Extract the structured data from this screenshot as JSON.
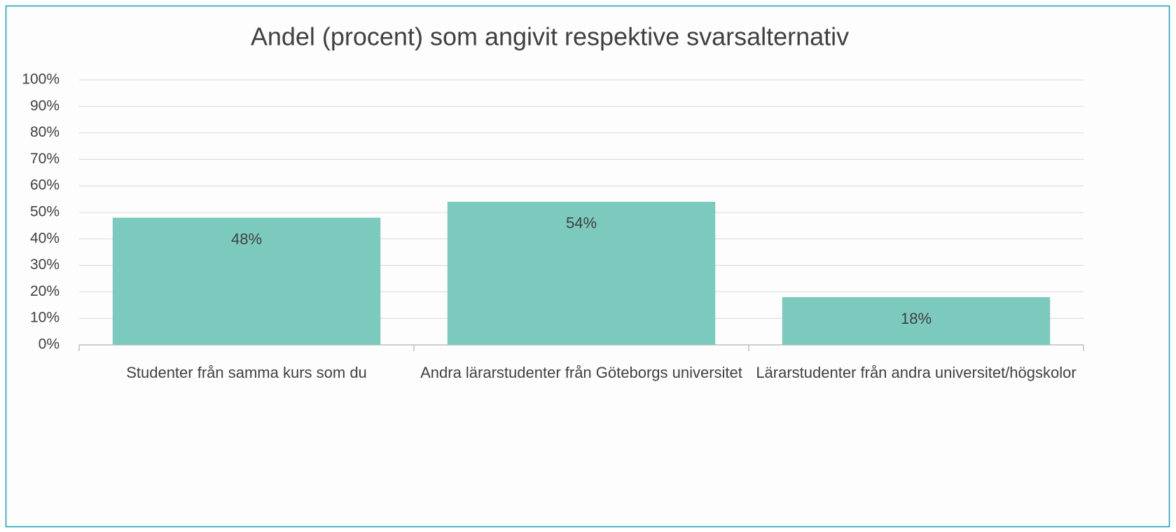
{
  "chart_data": {
    "type": "bar",
    "title": "Andel (procent) som angivit respektive svarsalternativ",
    "categories": [
      "Studenter från samma kurs som du",
      "Andra lärarstudenter från Göteborgs universitet",
      "Lärarstudenter från andra universitet/högskolor"
    ],
    "values": [
      48,
      54,
      18
    ],
    "value_labels": [
      "48%",
      "54%",
      "18%"
    ],
    "color": "#7ccabd",
    "ylim": [
      0,
      100
    ],
    "yticks": [
      {
        "value": 0,
        "label": "0%"
      },
      {
        "value": 10,
        "label": "10%"
      },
      {
        "value": 20,
        "label": "20%"
      },
      {
        "value": 30,
        "label": "30%"
      },
      {
        "value": 40,
        "label": "40%"
      },
      {
        "value": 50,
        "label": "50%"
      },
      {
        "value": 60,
        "label": "60%"
      },
      {
        "value": 70,
        "label": "70%"
      },
      {
        "value": 80,
        "label": "80%"
      },
      {
        "value": 90,
        "label": "90%"
      },
      {
        "value": 100,
        "label": "100%"
      }
    ],
    "grid": true
  }
}
